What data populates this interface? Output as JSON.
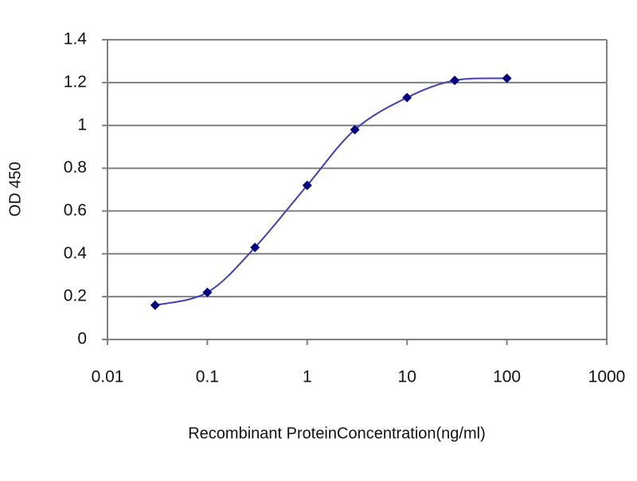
{
  "chart_data": {
    "type": "line",
    "x_label": "Recombinant ProteinConcentration(ng/ml)",
    "y_label": "OD 450",
    "x": [
      0.03,
      0.1,
      0.3,
      1,
      3,
      10,
      30,
      100
    ],
    "series": [
      {
        "name": "OD 450",
        "color": "#000080",
        "values": [
          0.16,
          0.22,
          0.43,
          0.72,
          0.98,
          1.13,
          1.21,
          1.22
        ]
      }
    ],
    "xscale": "log",
    "xlim": [
      0.01,
      1000
    ],
    "xticks": [
      0.01,
      0.1,
      1,
      10,
      100,
      1000
    ],
    "ylim": [
      0,
      1.4
    ],
    "yticks": [
      0,
      0.2,
      0.4,
      0.6,
      0.8,
      1,
      1.2,
      1.4
    ],
    "grid": true
  }
}
